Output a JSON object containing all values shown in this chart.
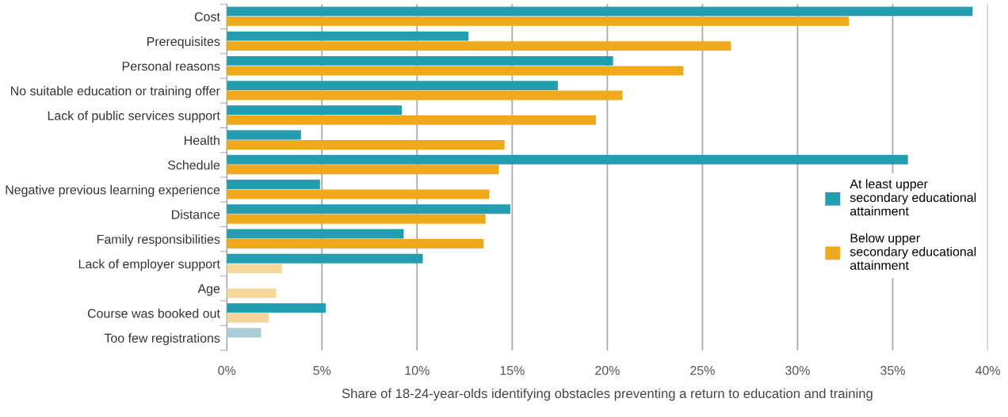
{
  "chart_data": {
    "type": "bar",
    "orientation": "horizontal",
    "xlabel": "Share of 18-24-year-olds identifying obstacles preventing a return to education and training",
    "categories": [
      "Cost",
      "Prerequisites",
      "Personal reasons",
      "No suitable education or training offer",
      "Lack of public services support",
      "Health",
      "Schedule",
      "Negative previous learning experience",
      "Distance",
      "Family responsibilities",
      "Lack of employer support",
      "Age",
      "Course was booked out",
      "Too few registrations"
    ],
    "series": [
      {
        "name": "At least upper secondary educational attainment",
        "color": "#229eb0",
        "values": [
          39.2,
          12.7,
          20.3,
          17.4,
          9.2,
          3.9,
          35.8,
          4.9,
          14.9,
          9.3,
          10.3,
          null,
          5.2,
          1.8
        ],
        "colors": [
          "#229eb0",
          "#229eb0",
          "#229eb0",
          "#229eb0",
          "#229eb0",
          "#229eb0",
          "#229eb0",
          "#229eb0",
          "#229eb0",
          "#229eb0",
          "#229eb0",
          "#229eb0",
          "#229eb0",
          "#a9cdd6"
        ]
      },
      {
        "name": "Below upper secondary educational attainment",
        "color": "#f0a91a",
        "values": [
          32.7,
          26.5,
          24.0,
          20.8,
          19.4,
          14.6,
          14.3,
          13.8,
          13.6,
          13.5,
          2.9,
          2.6,
          2.2,
          null
        ],
        "colors": [
          "#f0a91a",
          "#f0a91a",
          "#f0a91a",
          "#f0a91a",
          "#f0a91a",
          "#f0a91a",
          "#f0a91a",
          "#f0a91a",
          "#f0a91a",
          "#f0a91a",
          "#f8d69b",
          "#f8d69b",
          "#f8d69b",
          "#f8d69b"
        ]
      }
    ],
    "xlim": [
      0,
      40
    ],
    "xticks": [
      {
        "value": 0,
        "label": "0%"
      },
      {
        "value": 5,
        "label": "5%"
      },
      {
        "value": 10,
        "label": "10%"
      },
      {
        "value": 15,
        "label": "15%"
      },
      {
        "value": 20,
        "label": "20%"
      },
      {
        "value": 25,
        "label": "25%"
      },
      {
        "value": 30,
        "label": "30%"
      },
      {
        "value": 35,
        "label": "35%"
      },
      {
        "value": 40,
        "label": "40%"
      }
    ],
    "grid": "x",
    "legend": "right"
  }
}
